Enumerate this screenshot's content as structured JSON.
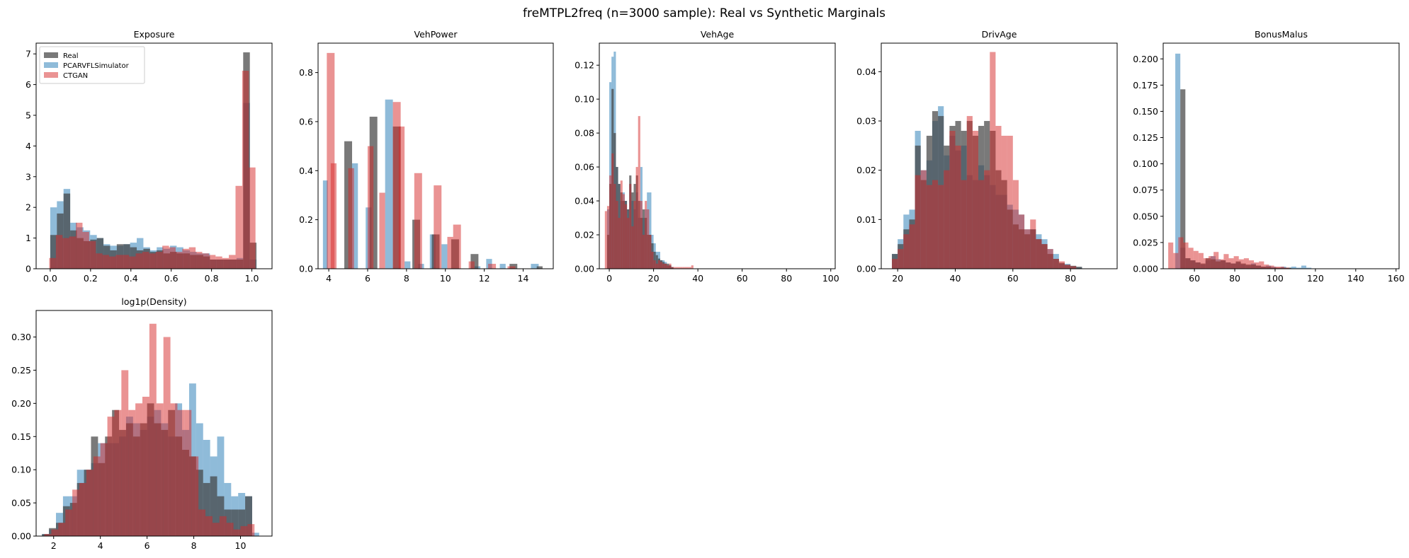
{
  "figure": {
    "title": "freMTPL2freq (n=3000 sample): Real vs Synthetic Marginals"
  },
  "series_styles": [
    {
      "name": "Real",
      "color": "#404040",
      "opacity": 0.7
    },
    {
      "name": "PCARVFLSimulator",
      "color": "#1f77b4",
      "opacity": 0.5
    },
    {
      "name": "CTGAN",
      "color": "#d62728",
      "opacity": 0.5
    }
  ],
  "chart_data": [
    {
      "type": "histogram",
      "title": "Exposure",
      "xlabel": "",
      "ylabel": "",
      "xlim": [
        -0.07,
        1.1
      ],
      "ylim": [
        0,
        7.35
      ],
      "xticks": [
        0.0,
        0.2,
        0.4,
        0.6,
        0.8,
        1.0
      ],
      "xtick_labels": [
        "0.0",
        "0.2",
        "0.4",
        "0.6",
        "0.8",
        "1.0"
      ],
      "yticks": [
        0,
        1,
        2,
        3,
        4,
        5,
        6,
        7
      ],
      "ytick_labels": [
        "0",
        "1",
        "2",
        "3",
        "4",
        "5",
        "6",
        "7"
      ],
      "legend": "upper-left",
      "series": [
        {
          "name": "PCARVFLSimulator",
          "bin_start": 0.0,
          "bin_width": 0.033,
          "values": [
            2.0,
            2.2,
            2.6,
            1.5,
            1.35,
            1.25,
            1.1,
            1.0,
            0.8,
            0.75,
            0.75,
            0.8,
            0.85,
            1.0,
            0.7,
            0.6,
            0.7,
            0.65,
            0.75,
            0.7,
            0.6,
            0.55,
            0.5,
            0.5,
            0.3,
            0.3,
            0.3,
            0.3,
            0.35,
            5.4,
            0.3
          ]
        },
        {
          "name": "Real",
          "bin_start": 0.0,
          "bin_width": 0.033,
          "values": [
            1.1,
            1.8,
            2.45,
            1.25,
            1.0,
            0.9,
            0.95,
            1.0,
            0.75,
            0.6,
            0.8,
            0.8,
            0.7,
            0.6,
            0.65,
            0.55,
            0.6,
            0.5,
            0.55,
            0.5,
            0.5,
            0.45,
            0.45,
            0.4,
            0.3,
            0.3,
            0.3,
            0.3,
            0.3,
            7.05,
            0.85
          ]
        },
        {
          "name": "CTGAN",
          "bin_start": -0.005,
          "bin_width": 0.033,
          "values": [
            0.35,
            1.1,
            1.0,
            1.05,
            1.5,
            1.2,
            0.9,
            0.5,
            0.45,
            0.4,
            0.45,
            0.45,
            0.4,
            0.5,
            0.55,
            0.5,
            0.55,
            0.75,
            0.7,
            0.55,
            0.65,
            0.7,
            0.55,
            0.5,
            0.45,
            0.4,
            0.35,
            0.45,
            2.7,
            6.45,
            3.3
          ]
        }
      ]
    },
    {
      "type": "histogram",
      "title": "VehPower",
      "xlabel": "",
      "ylabel": "",
      "xlim": [
        3.45,
        15.55
      ],
      "ylim": [
        0,
        0.92
      ],
      "xticks": [
        4,
        6,
        8,
        10,
        12,
        14
      ],
      "xtick_labels": [
        "4",
        "6",
        "8",
        "10",
        "12",
        "14"
      ],
      "yticks": [
        0.0,
        0.2,
        0.4,
        0.6,
        0.8
      ],
      "ytick_labels": [
        "0.0",
        "0.2",
        "0.4",
        "0.6",
        "0.8"
      ],
      "series": [
        {
          "name": "PCARVFLSimulator",
          "bins": [
            [
              3.7,
              3.95,
              0.36
            ],
            [
              5.2,
              5.5,
              0.43
            ],
            [
              5.9,
              6.2,
              0.25
            ],
            [
              6.9,
              7.3,
              0.69
            ],
            [
              7.9,
              8.2,
              0.03
            ],
            [
              8.6,
              8.9,
              0.02
            ],
            [
              9.2,
              9.5,
              0.14
            ],
            [
              9.8,
              10.1,
              0.1
            ],
            [
              11.5,
              11.8,
              0.01
            ],
            [
              12.1,
              12.4,
              0.04
            ],
            [
              12.8,
              13.1,
              0.02
            ],
            [
              14.4,
              14.8,
              0.02
            ]
          ]
        },
        {
          "name": "Real",
          "bins": [
            [
              4.8,
              5.2,
              0.52
            ],
            [
              6.1,
              6.5,
              0.62
            ],
            [
              7.3,
              7.7,
              0.58
            ],
            [
              8.3,
              8.7,
              0.2
            ],
            [
              9.3,
              9.7,
              0.14
            ],
            [
              10.3,
              10.7,
              0.12
            ],
            [
              11.3,
              11.7,
              0.06
            ],
            [
              13.3,
              13.7,
              0.02
            ],
            [
              14.7,
              15.0,
              0.01
            ]
          ]
        },
        {
          "name": "CTGAN",
          "bins": [
            [
              3.9,
              4.3,
              0.88
            ],
            [
              4.1,
              4.4,
              0.43
            ],
            [
              5.0,
              5.3,
              0.41
            ],
            [
              6.0,
              6.3,
              0.5
            ],
            [
              6.6,
              6.9,
              0.31
            ],
            [
              7.3,
              7.7,
              0.68
            ],
            [
              7.6,
              7.9,
              0.58
            ],
            [
              8.4,
              8.8,
              0.39
            ],
            [
              9.4,
              9.8,
              0.34
            ],
            [
              10.4,
              10.8,
              0.18
            ],
            [
              10.1,
              10.4,
              0.13
            ],
            [
              11.2,
              11.5,
              0.03
            ],
            [
              12.2,
              12.6,
              0.02
            ],
            [
              13.2,
              13.6,
              0.01
            ]
          ]
        }
      ]
    },
    {
      "type": "histogram",
      "title": "VehAge",
      "xlabel": "",
      "ylabel": "",
      "xlim": [
        -4.5,
        102
      ],
      "ylim": [
        0,
        0.133
      ],
      "xticks": [
        0,
        20,
        40,
        60,
        80,
        100
      ],
      "xtick_labels": [
        "0",
        "20",
        "40",
        "60",
        "80",
        "100"
      ],
      "yticks": [
        0.0,
        0.02,
        0.04,
        0.06,
        0.08,
        0.1,
        0.12
      ],
      "ytick_labels": [
        "0.00",
        "0.02",
        "0.04",
        "0.06",
        "0.08",
        "0.10",
        "0.12"
      ],
      "series": [
        {
          "name": "PCARVFLSimulator",
          "bin_start": -1.0,
          "bin_width": 1.0,
          "values": [
            0.035,
            0.11,
            0.125,
            0.128,
            0.06,
            0.05,
            0.04,
            0.045,
            0.04,
            0.035,
            0.05,
            0.04,
            0.035,
            0.045,
            0.03,
            0.06,
            0.03,
            0.035,
            0.045,
            0.045,
            0.02,
            0.015,
            0.01,
            0.01,
            0.005,
            0.005,
            0.004,
            0.002,
            0.002,
            0.001
          ]
        },
        {
          "name": "Real",
          "bin_start": -1.0,
          "bin_width": 1.0,
          "values": [
            0.02,
            0.05,
            0.106,
            0.08,
            0.06,
            0.05,
            0.045,
            0.04,
            0.04,
            0.035,
            0.055,
            0.045,
            0.05,
            0.055,
            0.04,
            0.03,
            0.035,
            0.03,
            0.02,
            0.02,
            0.015,
            0.01,
            0.008,
            0.006,
            0.005,
            0.004,
            0.003,
            0.003,
            0.002,
            0.001
          ]
        },
        {
          "name": "CTGAN",
          "bin_start": -2.0,
          "bin_width": 1.0,
          "values": [
            0.034,
            0.037,
            0.055,
            0.068,
            0.05,
            0.04,
            0.03,
            0.052,
            0.044,
            0.038,
            0.03,
            0.05,
            0.025,
            0.04,
            0.06,
            0.09,
            0.04,
            0.02,
            0.04,
            0.035,
            0.02,
            0.01,
            0.005,
            0.003,
            0.005,
            0.004,
            0.003,
            0.003,
            0.002,
            0.003,
            0.001,
            0.001,
            0.001,
            0.001,
            0.001,
            0.001,
            0.001,
            0.001,
            0.001,
            0.002
          ]
        }
      ]
    },
    {
      "type": "histogram",
      "title": "DrivAge",
      "xlabel": "",
      "ylabel": "",
      "xlim": [
        14.3,
        96.2
      ],
      "ylim": [
        0,
        0.0458
      ],
      "xticks": [
        20,
        40,
        60,
        80
      ],
      "xtick_labels": [
        "20",
        "40",
        "60",
        "80"
      ],
      "yticks": [
        0.0,
        0.01,
        0.02,
        0.03,
        0.04
      ],
      "ytick_labels": [
        "0.00",
        "0.01",
        "0.02",
        "0.03",
        "0.04"
      ],
      "series": [
        {
          "name": "PCARVFLSimulator",
          "bin_start": 18,
          "bin_width": 2.0,
          "values": [
            0.003,
            0.006,
            0.011,
            0.012,
            0.028,
            0.02,
            0.022,
            0.03,
            0.033,
            0.023,
            0.027,
            0.024,
            0.025,
            0.019,
            0.018,
            0.021,
            0.019,
            0.017,
            0.015,
            0.015,
            0.013,
            0.012,
            0.011,
            0.008,
            0.008,
            0.007,
            0.006,
            0.004,
            0.003,
            0.001,
            0.001,
            0.0005,
            0.0003
          ]
        },
        {
          "name": "Real",
          "bin_start": 18,
          "bin_width": 2.0,
          "values": [
            0.003,
            0.005,
            0.008,
            0.01,
            0.025,
            0.018,
            0.027,
            0.032,
            0.031,
            0.025,
            0.029,
            0.03,
            0.028,
            0.03,
            0.027,
            0.029,
            0.03,
            0.028,
            0.02,
            0.018,
            0.012,
            0.009,
            0.008,
            0.007,
            0.008,
            0.006,
            0.005,
            0.003,
            0.002,
            0.0012,
            0.0008,
            0.0006,
            0.0004
          ]
        },
        {
          "name": "CTGAN",
          "bin_start": 18,
          "bin_width": 2.0,
          "values": [
            0.002,
            0.004,
            0.007,
            0.009,
            0.019,
            0.02,
            0.017,
            0.018,
            0.017,
            0.02,
            0.028,
            0.025,
            0.018,
            0.031,
            0.028,
            0.018,
            0.02,
            0.044,
            0.029,
            0.027,
            0.027,
            0.018,
            0.011,
            0.008,
            0.01,
            0.006,
            0.005,
            0.004,
            0.002,
            0.0015,
            0.0008,
            0.0005
          ]
        }
      ]
    },
    {
      "type": "histogram",
      "title": "BonusMalus",
      "xlabel": "",
      "ylabel": "",
      "xlim": [
        44.5,
        161.5
      ],
      "ylim": [
        0,
        0.215
      ],
      "xticks": [
        60,
        80,
        100,
        120,
        140,
        160
      ],
      "xtick_labels": [
        "60",
        "80",
        "100",
        "120",
        "140",
        "160"
      ],
      "yticks": [
        0.0,
        0.025,
        0.05,
        0.075,
        0.1,
        0.125,
        0.15,
        0.175,
        0.2
      ],
      "ytick_labels": [
        "0.000",
        "0.025",
        "0.050",
        "0.075",
        "0.100",
        "0.125",
        "0.150",
        "0.175",
        "0.200"
      ],
      "series": [
        {
          "name": "PCARVFLSimulator",
          "bin_start": 48,
          "bin_width": 2.5,
          "values": [
            0.0,
            0.205,
            0.02,
            0.01,
            0.008,
            0.006,
            0.004,
            0.008,
            0.012,
            0.009,
            0.008,
            0.006,
            0.005,
            0.006,
            0.004,
            0.003,
            0.005,
            0.003,
            0.002,
            0.003,
            0.002,
            0.001,
            0.002,
            0.001,
            0.002,
            0.001,
            0.003,
            0.001
          ]
        },
        {
          "name": "Real",
          "bin_start": 48,
          "bin_width": 2.5,
          "values": [
            0.0,
            0.0,
            0.171,
            0.01,
            0.008,
            0.006,
            0.005,
            0.01,
            0.009,
            0.007,
            0.008,
            0.006,
            0.005,
            0.007,
            0.005,
            0.004,
            0.004,
            0.003,
            0.002,
            0.002,
            0.001,
            0.001,
            0.001,
            0.001
          ]
        },
        {
          "name": "CTGAN",
          "bin_start": 47,
          "bin_width": 2.5,
          "values": [
            0.025,
            0.015,
            0.03,
            0.025,
            0.02,
            0.017,
            0.015,
            0.01,
            0.012,
            0.016,
            0.009,
            0.014,
            0.01,
            0.012,
            0.009,
            0.01,
            0.008,
            0.006,
            0.007,
            0.004,
            0.003,
            0.002,
            0.002,
            0.001
          ]
        }
      ]
    },
    {
      "type": "histogram",
      "title": "log1p(Density)",
      "xlabel": "",
      "ylabel": "",
      "xlim": [
        1.25,
        11.35
      ],
      "ylim": [
        0,
        0.34
      ],
      "xticks": [
        2,
        4,
        6,
        8,
        10
      ],
      "xtick_labels": [
        "2",
        "4",
        "6",
        "8",
        "10"
      ],
      "yticks": [
        0.0,
        0.05,
        0.1,
        0.15,
        0.2,
        0.25,
        0.3
      ],
      "ytick_labels": [
        "0.00",
        "0.05",
        "0.10",
        "0.15",
        "0.20",
        "0.25",
        "0.30"
      ],
      "series": [
        {
          "name": "PCARVFLSimulator",
          "bin_start": 1.5,
          "bin_width": 0.3,
          "values": [
            0.003,
            0.01,
            0.035,
            0.06,
            0.06,
            0.1,
            0.1,
            0.11,
            0.14,
            0.14,
            0.14,
            0.15,
            0.18,
            0.17,
            0.16,
            0.18,
            0.19,
            0.17,
            0.15,
            0.2,
            0.16,
            0.23,
            0.17,
            0.145,
            0.12,
            0.15,
            0.08,
            0.06,
            0.065,
            0.06,
            0.005
          ]
        },
        {
          "name": "Real",
          "bin_start": 1.5,
          "bin_width": 0.3,
          "values": [
            0.003,
            0.012,
            0.02,
            0.045,
            0.05,
            0.08,
            0.1,
            0.15,
            0.11,
            0.15,
            0.19,
            0.16,
            0.17,
            0.15,
            0.17,
            0.2,
            0.17,
            0.16,
            0.19,
            0.15,
            0.13,
            0.12,
            0.1,
            0.08,
            0.09,
            0.06,
            0.04,
            0.04,
            0.04,
            0.06
          ]
        },
        {
          "name": "CTGAN",
          "bin_start": 1.3,
          "bin_width": 0.3,
          "values": [
            0.0,
            0.003,
            0.01,
            0.02,
            0.04,
            0.07,
            0.08,
            0.1,
            0.12,
            0.14,
            0.18,
            0.19,
            0.25,
            0.19,
            0.2,
            0.21,
            0.32,
            0.2,
            0.3,
            0.2,
            0.19,
            0.19,
            0.12,
            0.04,
            0.03,
            0.02,
            0.03,
            0.02,
            0.01,
            0.015,
            0.018
          ]
        }
      ]
    }
  ]
}
